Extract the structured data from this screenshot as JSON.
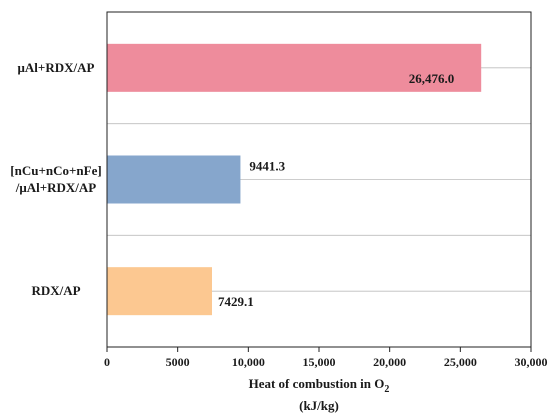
{
  "chart_data": {
    "type": "bar",
    "orientation": "horizontal",
    "categories": [
      [
        "μAl+RDX/AP"
      ],
      [
        "[nCu+nCo+nFe]",
        "/μAl+RDX/AP"
      ],
      [
        "RDX/AP"
      ]
    ],
    "values": [
      26476.0,
      9441.3,
      7429.1
    ],
    "value_labels": [
      "26,476.0",
      "9441.3",
      "7429.1"
    ],
    "colors": [
      "#ee8c9c",
      "#86a6cc",
      "#fcc891"
    ],
    "xlim": [
      0,
      30000
    ],
    "xticks": [
      0,
      5000,
      10000,
      15000,
      20000,
      25000,
      30000
    ],
    "xtick_labels": [
      "0",
      "5000",
      "10,000",
      "15,000",
      "20,000",
      "25,000",
      "30,000"
    ],
    "xlabel_main": "Heat of combustion in O",
    "xlabel_sub": "2",
    "xlabel_unit": "(kJ/kg)",
    "grid": "horizontal",
    "legend": "none"
  }
}
